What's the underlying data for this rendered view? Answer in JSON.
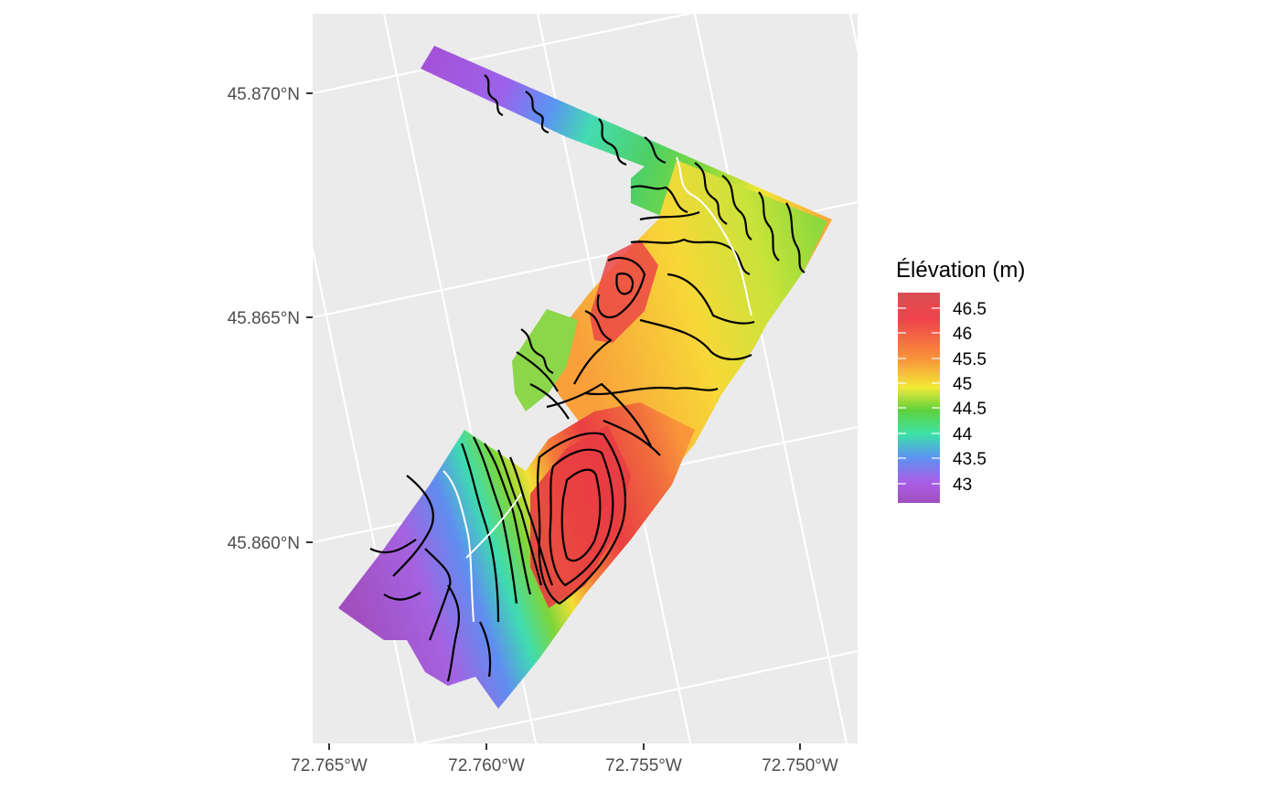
{
  "map": {
    "y_axis_labels": [
      "45.870°N",
      "45.865°N",
      "45.860°N"
    ],
    "x_axis_labels": [
      "72.765°W",
      "72.760°W",
      "72.755°W",
      "72.750°W"
    ]
  },
  "legend": {
    "title": "Élévation (m)",
    "labels": [
      "46.5",
      "46",
      "45.5",
      "45",
      "44.5",
      "44",
      "43.5",
      "43"
    ],
    "colors": {
      "top": "#d94d52",
      "red": "#f0434a",
      "orange": "#f9963a",
      "yellow": "#f2ea36",
      "green": "#5fd13c",
      "teal": "#3ce3a4",
      "blue": "#5a95f2",
      "violet": "#a95ee8",
      "bottom": "#a14fbf"
    }
  },
  "colors": {
    "panel_background": "#ebebeb",
    "grid": "#ffffff",
    "contour": "#000000",
    "axis_text": "#4d4d4d"
  }
}
